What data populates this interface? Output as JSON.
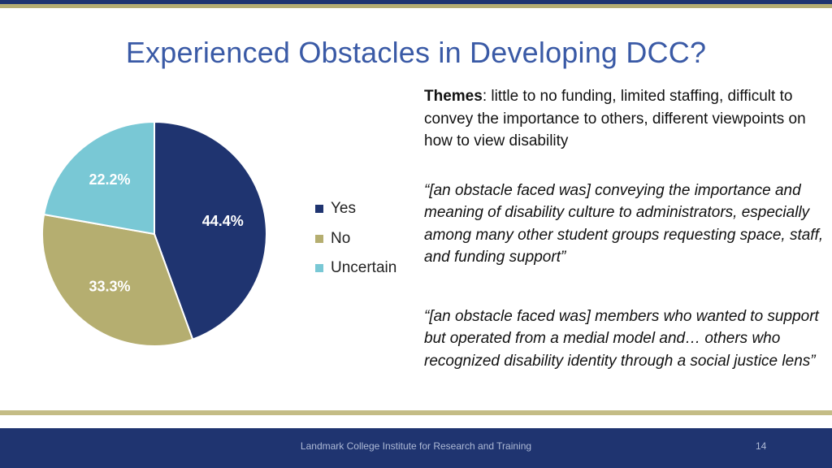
{
  "title": "Experienced Obstacles in Developing DCC?",
  "chart_data": {
    "type": "pie",
    "title": "",
    "categories": [
      "Yes",
      "No",
      "Uncertain"
    ],
    "values": [
      44.4,
      33.3,
      22.2
    ],
    "labels": [
      "44.4%",
      "33.3%",
      "22.2%"
    ],
    "colors": [
      "#1f3470",
      "#b5ae70",
      "#79c8d5"
    ],
    "legend_position": "right"
  },
  "text": {
    "themes_label": "Themes",
    "themes_body": ": little to no funding, limited staffing, difficult to convey the importance to others, different viewpoints on how to view disability",
    "quote1": "“[an obstacle faced was] conveying the importance and meaning of disability culture to administrators, especially among many other student groups requesting space, staff, and funding support”",
    "quote2": "“[an obstacle faced was] members who wanted to support but operated from a medial model and… others who recognized disability identity through a social justice lens”"
  },
  "footer": {
    "text": "Landmark College Institute for Research and Training",
    "page": "14"
  }
}
